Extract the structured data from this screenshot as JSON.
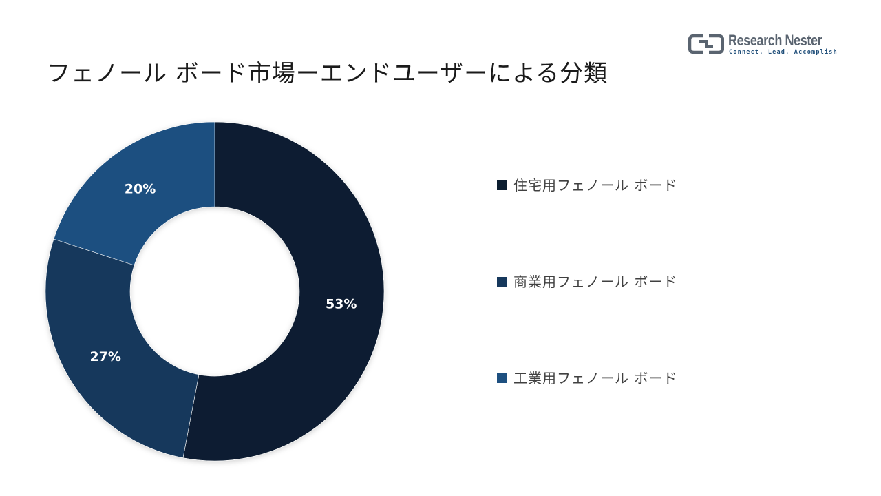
{
  "title": "フェノール ボード市場ーエンドユーザーによる分類",
  "logo": {
    "name": "Research Nester",
    "tagline": "Connect. Lead. Accomplish"
  },
  "chart_data": {
    "type": "pie",
    "variant": "donut",
    "title": "フェノール ボード市場ーエンドユーザーによる分類",
    "legend_position": "right",
    "categories": [
      "住宅用フェノール ボード",
      "商業用フェノール ボード",
      "工業用フェノール ボード"
    ],
    "values": [
      53,
      27,
      20
    ],
    "labels": [
      "53%",
      "27%",
      "20%"
    ],
    "colors": [
      "#0c1e30",
      "#16385c",
      "#1e5080"
    ],
    "start_angle_deg": 0,
    "direction": "clockwise"
  }
}
